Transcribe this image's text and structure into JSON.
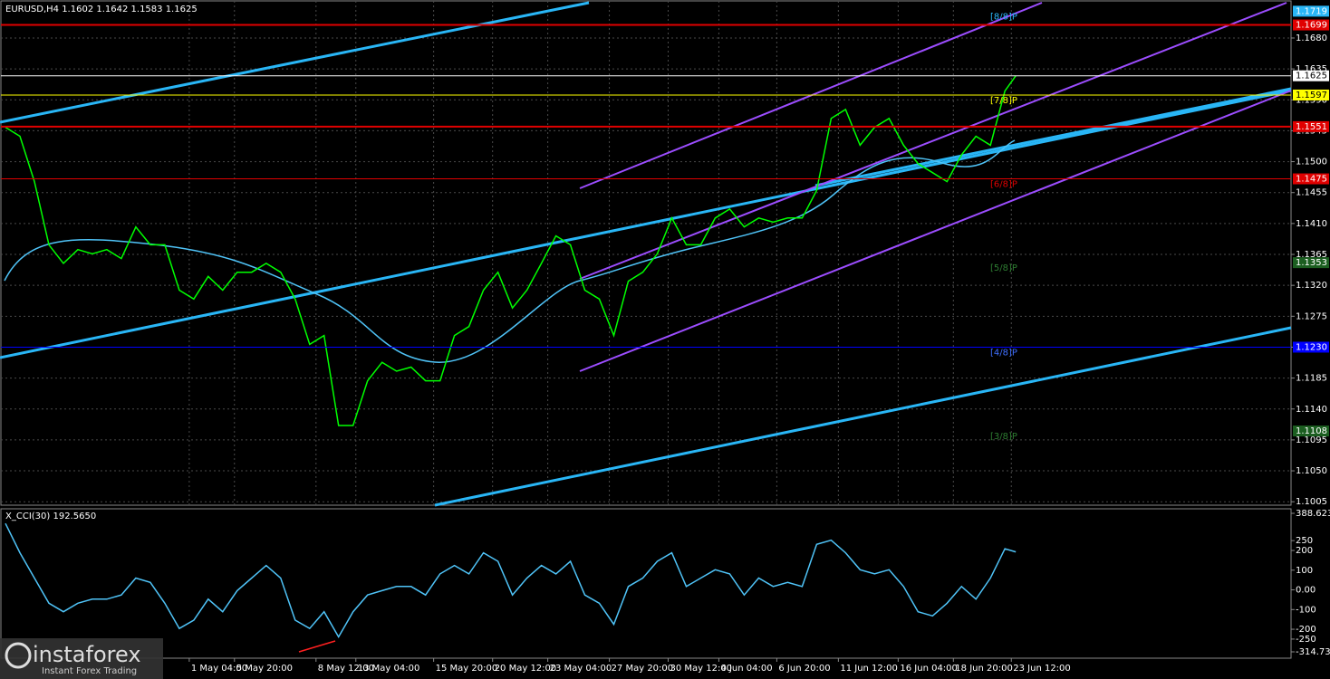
{
  "chart_data": [
    {
      "type": "line",
      "title": "EURUSD,H4  1.1602 1.1642 1.1583 1.1625",
      "x": [
        0,
        1,
        2,
        3,
        4,
        5,
        6,
        7,
        8,
        9,
        10,
        11,
        12,
        13,
        14,
        15,
        16,
        17,
        18,
        19,
        20,
        21,
        22,
        23,
        24,
        25,
        26,
        27,
        28,
        29,
        30,
        31,
        32,
        33,
        34,
        35,
        36,
        37,
        38,
        39,
        40,
        41,
        42,
        43,
        44,
        45,
        46,
        47,
        48,
        49,
        50,
        51,
        52,
        53,
        54,
        55,
        56,
        57,
        58,
        59,
        60,
        61,
        62,
        63,
        64,
        65,
        66,
        67,
        68,
        69,
        69.75
      ],
      "series": [
        {
          "color": "#00ff00",
          "values": [
            1.155,
            1.1537,
            1.1471,
            1.1379,
            1.1352,
            1.1372,
            1.1366,
            1.1372,
            1.1359,
            1.1405,
            1.1379,
            1.1379,
            1.1313,
            1.13,
            1.1333,
            1.1313,
            1.1339,
            1.1339,
            1.1352,
            1.1339,
            1.13,
            1.1234,
            1.1247,
            1.1116,
            1.1116,
            1.1181,
            1.1208,
            1.1195,
            1.1201,
            1.1181,
            1.1181,
            1.1247,
            1.126,
            1.1313,
            1.1339,
            1.1287,
            1.1313,
            1.1352,
            1.1392,
            1.1379,
            1.1313,
            1.13,
            1.1247,
            1.1326,
            1.1339,
            1.1366,
            1.1418,
            1.1379,
            1.1379,
            1.1418,
            1.1431,
            1.1405,
            1.1418,
            1.1412,
            1.1418,
            1.1418,
            1.1458,
            1.1563,
            1.1576,
            1.1524,
            1.155,
            1.1563,
            1.1524,
            1.1497,
            1.1484,
            1.1471,
            1.151,
            1.1537,
            1.1524,
            1.1603,
            1.1625
          ]
        }
      ],
      "xlim": [
        -0.3125,
        88.75
      ],
      "xticks": [
        {
          "value": 12.69,
          "label": "1 May 04:00"
        },
        {
          "value": 15.81,
          "label": "5 May 20:00"
        },
        {
          "value": 21.44,
          "label": "8 May 12:00"
        },
        {
          "value": 24.19,
          "label": "13 May 04:00"
        },
        {
          "value": 29.56,
          "label": "15 May 20:00"
        },
        {
          "value": 33.63,
          "label": "20 May 12:00"
        },
        {
          "value": 37.44,
          "label": "23 May 04:00"
        },
        {
          "value": 41.69,
          "label": "27 May 20:00"
        },
        {
          "value": 45.75,
          "label": "30 May 12:00"
        },
        {
          "value": 49.25,
          "label": "4 Jun 04:00"
        },
        {
          "value": 53.25,
          "label": "6 Jun 20:00"
        },
        {
          "value": 57.5,
          "label": "11 Jun 12:00"
        },
        {
          "value": 61.63,
          "label": "16 Jun 04:00"
        },
        {
          "value": 65.44,
          "label": "18 Jun 20:00"
        },
        {
          "value": 69.44,
          "label": "23 Jun 12:00"
        }
      ],
      "ylim": [
        1.1,
        1.1734
      ],
      "yticks": [
        1.1005,
        {
          "value": 1.105,
          "label": "1.1050"
        },
        1.1095,
        {
          "value": 1.114,
          "label": "1.1140"
        },
        1.1185,
        {
          "value": 1.123,
          "label": "1.1230"
        },
        1.1275,
        {
          "value": 1.132,
          "label": "1.1320"
        },
        1.1365,
        {
          "value": 1.141,
          "label": "1.1410"
        },
        1.1455,
        {
          "value": 1.15,
          "label": "1.1500"
        },
        1.1545,
        {
          "value": 1.159,
          "label": "1.1590"
        },
        1.1635,
        {
          "value": 1.168,
          "label": "1.1680"
        }
      ],
      "grid": true,
      "levels": [
        {
          "value": 1.1719,
          "color": "#29b6f6",
          "line": false,
          "tag": "[8/8]P"
        },
        {
          "value": 1.1699,
          "color": "#e00000",
          "line": true
        },
        {
          "value": 1.1625,
          "color": "#ffffff",
          "line": true
        },
        {
          "value": 1.1597,
          "color": "#ffff00",
          "line": true,
          "tag": "[7/8]P"
        },
        {
          "value": 1.1551,
          "color": "#e00000",
          "line": true
        },
        {
          "value": 1.1475,
          "color": "#e00000",
          "line": true,
          "tag": "[6/8]P"
        },
        {
          "value": 1.1353,
          "color": "#1b5e20",
          "line": false,
          "tag": "[5/8]P"
        },
        {
          "value": 1.123,
          "label": "1.1230",
          "color": "#0000ff",
          "line": true,
          "tag": "[4/8]P"
        },
        {
          "value": 1.1108,
          "color": "#1b5e20",
          "line": false,
          "tag": "[3/8]P"
        }
      ]
    },
    {
      "type": "line",
      "title": "X_CCI(30) 192.5650",
      "x": [
        0,
        1,
        2,
        3,
        4,
        5,
        6,
        7,
        8,
        9,
        10,
        11,
        12,
        13,
        14,
        15,
        16,
        17,
        18,
        19,
        20,
        21,
        22,
        23,
        24,
        25,
        26,
        27,
        28,
        29,
        30,
        31,
        32,
        33,
        34,
        35,
        36,
        37,
        38,
        39,
        40,
        41,
        42,
        43,
        44,
        45,
        46,
        47,
        48,
        49,
        50,
        51,
        52,
        53,
        54,
        55,
        56,
        57,
        58,
        59,
        60,
        61,
        62,
        63,
        64,
        65,
        66,
        67,
        68,
        69,
        69.75
      ],
      "series": [
        {
          "color": "#4fc3f7",
          "values": [
            337,
            188,
            60,
            -68,
            -111,
            -68,
            -47,
            -47,
            -26,
            60,
            38,
            -68,
            -196,
            -154,
            -47,
            -111,
            -4,
            60,
            124,
            60,
            -154,
            -196,
            -111,
            -239,
            -111,
            -26,
            -4,
            17,
            17,
            -26,
            81,
            124,
            81,
            188,
            145,
            -26,
            60,
            124,
            81,
            145,
            -26,
            -68,
            -175,
            17,
            60,
            145,
            188,
            17,
            60,
            102,
            81,
            -26,
            60,
            17,
            38,
            17,
            231,
            252,
            188,
            102,
            81,
            102,
            17,
            -111,
            -132,
            -68,
            17,
            -47,
            60,
            209,
            192.565
          ]
        }
      ],
      "xlim": [
        -0.3125,
        88.75
      ],
      "ylim": [
        -314.734,
        388.6237
      ],
      "yticks": [
        -314.734,
        -250,
        -200,
        -100,
        {
          "value": 0,
          "label": "0.00"
        },
        100,
        200,
        250,
        388.6237
      ]
    }
  ],
  "watermark": {
    "brand": "instaforex",
    "slogan": "Instant Forex Trading"
  }
}
